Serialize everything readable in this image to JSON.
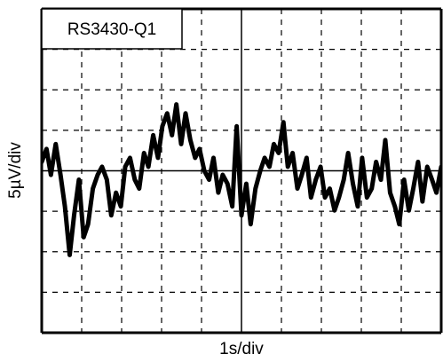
{
  "chart_data": {
    "type": "line",
    "annotation": "RS3430-Q1",
    "xlabel": "1s/div",
    "ylabel": "5µV/div",
    "color": "#000000",
    "grid": true,
    "xlim": [
      0,
      10
    ],
    "ylim": [
      -20,
      20
    ],
    "xticks": [
      0,
      1,
      2,
      3,
      4,
      5,
      6,
      7,
      8,
      9,
      10
    ],
    "yticks": [
      -20,
      -15,
      -10,
      -5,
      0,
      5,
      10,
      15,
      20
    ],
    "x": [
      0,
      0.12,
      0.23,
      0.35,
      0.47,
      0.58,
      0.7,
      0.81,
      0.93,
      1.05,
      1.16,
      1.28,
      1.4,
      1.51,
      1.63,
      1.74,
      1.86,
      1.98,
      2.09,
      2.21,
      2.33,
      2.44,
      2.56,
      2.67,
      2.79,
      2.91,
      3.02,
      3.14,
      3.26,
      3.37,
      3.49,
      3.6,
      3.72,
      3.84,
      3.95,
      4.07,
      4.19,
      4.3,
      4.42,
      4.53,
      4.65,
      4.77,
      4.88,
      5.0,
      5.12,
      5.23,
      5.35,
      5.47,
      5.58,
      5.7,
      5.81,
      5.93,
      6.05,
      6.16,
      6.28,
      6.4,
      6.51,
      6.63,
      6.74,
      6.86,
      6.98,
      7.09,
      7.21,
      7.33,
      7.44,
      7.56,
      7.67,
      7.79,
      7.91,
      8.02,
      8.14,
      8.26,
      8.37,
      8.49,
      8.6,
      8.72,
      8.84,
      8.95,
      9.07,
      9.19,
      9.3,
      9.42,
      9.53,
      9.65,
      9.77,
      9.88,
      10.0
    ],
    "values": [
      1.1,
      2.7,
      -0.5,
      3.3,
      -0.5,
      -4.4,
      -10.4,
      -5.5,
      -1.1,
      -8.2,
      -6.6,
      -2.2,
      -0.5,
      0.5,
      -1.1,
      -5.5,
      -2.7,
      -4.4,
      0.5,
      1.6,
      -1.1,
      -2.2,
      2.2,
      0.5,
      4.4,
      1.6,
      5.5,
      7.1,
      4.4,
      8.2,
      3.3,
      7.1,
      3.8,
      1.6,
      2.7,
      0,
      -1.1,
      1.6,
      -2.7,
      -0.5,
      -1.6,
      -4.4,
      5.5,
      -5.5,
      -1.6,
      -6.6,
      -2.2,
      0,
      1.6,
      0.5,
      3.3,
      2.2,
      6.0,
      0.5,
      2.2,
      -2.2,
      -0.5,
      1.6,
      -3.3,
      -1.1,
      0.5,
      -3.3,
      -2.2,
      -4.9,
      -3.3,
      -1.1,
      2.2,
      -1.6,
      -4.4,
      1.6,
      -3.3,
      -2.2,
      1.1,
      -1.1,
      3.8,
      -2.7,
      -4.4,
      -6.6,
      -1.1,
      -4.9,
      -2.2,
      1.1,
      -3.8,
      0.5,
      -1.1,
      -2.7,
      0.5
    ]
  }
}
